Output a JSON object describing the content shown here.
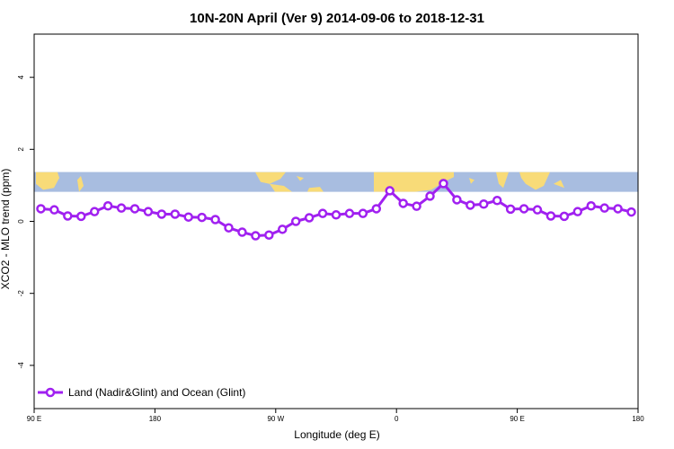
{
  "chart_data": {
    "type": "line",
    "title": "10N-20N April (Ver 9)   2014-09-06 to 2018-12-31",
    "xlabel": "Longitude (deg E)",
    "ylabel": "XCO2 - MLO trend (ppm)",
    "xlim": [
      90,
      540
    ],
    "ylim": [
      -5.2,
      5.2
    ],
    "x_ticks": [
      {
        "value": 90,
        "label": "90 E"
      },
      {
        "value": 180,
        "label": "180"
      },
      {
        "value": 270,
        "label": "90 W"
      },
      {
        "value": 360,
        "label": "0"
      },
      {
        "value": 450,
        "label": "90 E"
      },
      {
        "value": 540,
        "label": "180"
      }
    ],
    "y_ticks": [
      {
        "value": 4,
        "label": "4"
      },
      {
        "value": 2,
        "label": "2"
      },
      {
        "value": 0,
        "label": "0"
      },
      {
        "value": -2,
        "label": "-2"
      },
      {
        "value": -4,
        "label": "-4"
      }
    ],
    "map_strip": {
      "y_bottom": 0.82,
      "y_top": 1.37,
      "ocean_color": "#A8BDE0",
      "land_color": "#F8DB78"
    },
    "legend_position": "bottom-left",
    "series": [
      {
        "name": "Land (Nadir&Glint) and Ocean (Glint)",
        "color": "#A020F0",
        "x": [
          95,
          105,
          115,
          125,
          135,
          145,
          155,
          165,
          175,
          185,
          195,
          205,
          215,
          225,
          235,
          245,
          255,
          265,
          275,
          285,
          295,
          305,
          315,
          325,
          335,
          345,
          355,
          365,
          375,
          385,
          395,
          405,
          415,
          425,
          435,
          445,
          455,
          465,
          475,
          485,
          495,
          505,
          515,
          525,
          535
        ],
        "values": [
          0.35,
          0.32,
          0.15,
          0.14,
          0.27,
          0.43,
          0.37,
          0.35,
          0.27,
          0.2,
          0.2,
          0.12,
          0.11,
          0.05,
          -0.18,
          -0.3,
          -0.4,
          -0.38,
          -0.22,
          0.0,
          0.1,
          0.22,
          0.18,
          0.22,
          0.22,
          0.35,
          0.85,
          0.5,
          0.42,
          0.7,
          1.05,
          0.6,
          0.45,
          0.48,
          0.58,
          0.34,
          0.35,
          0.32,
          0.15,
          0.14,
          0.27,
          0.43,
          0.37,
          0.35,
          0.26
        ]
      }
    ]
  }
}
